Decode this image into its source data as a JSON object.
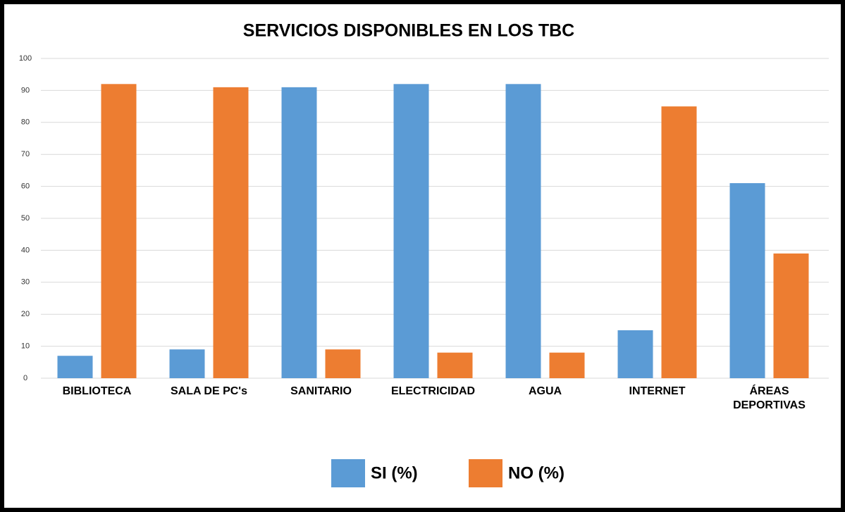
{
  "chart_data": {
    "type": "bar",
    "title": "SERVICIOS DISPONIBLES EN LOS TBC",
    "categories": [
      "BIBLIOTECA",
      "SALA DE PC's",
      "SANITARIO",
      "ELECTRICIDAD",
      "AGUA",
      "INTERNET",
      "ÁREAS DEPORTIVAS"
    ],
    "series": [
      {
        "name": "SI (%)",
        "color": "#5b9bd5",
        "values": [
          7,
          9,
          91,
          92,
          92,
          15,
          61
        ]
      },
      {
        "name": "NO (%)",
        "color": "#ed7d31",
        "values": [
          92,
          91,
          9,
          8,
          8,
          85,
          39
        ]
      }
    ],
    "ylim": [
      0,
      100
    ],
    "yticks": [
      0,
      10,
      20,
      30,
      40,
      50,
      60,
      70,
      80,
      90,
      100
    ],
    "grid": true,
    "legend": "bottom"
  }
}
